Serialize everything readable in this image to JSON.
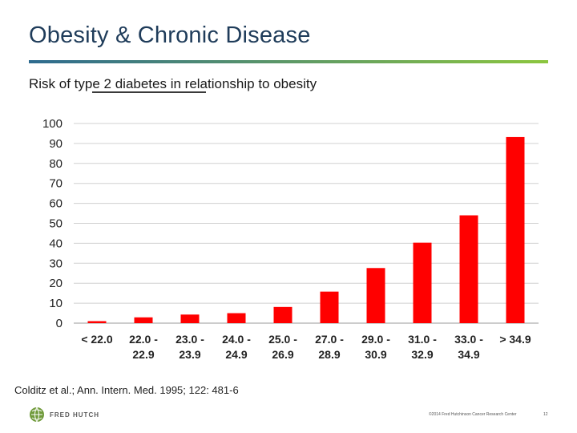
{
  "slide": {
    "title": "Obesity & Chronic Disease",
    "subtitle": "Risk of type 2 diabetes in relationship to obesity",
    "citation": "Colditz et al.; Ann. Intern. Med. 1995; 122: 481-6",
    "logo_text": "FRED HUTCH",
    "copyright": "©2014 Fred Hutchinson Cancer Research Center",
    "page_number": "12"
  },
  "colors": {
    "title": "#1f3c5a",
    "rule_start": "#2e6b8f",
    "rule_end": "#8cc63f",
    "bar": "#ff0000",
    "grid": "#d0d0d0"
  },
  "chart_data": {
    "type": "bar",
    "title": "Risk of type 2 diabetes in relationship to obesity",
    "xlabel": "",
    "ylabel": "",
    "ylim": [
      0,
      100
    ],
    "yticks": [
      0,
      10,
      20,
      30,
      40,
      50,
      60,
      70,
      80,
      90,
      100
    ],
    "grid": true,
    "legend": "none",
    "categories": [
      [
        "< 22.0"
      ],
      [
        "22.0 -",
        "22.9"
      ],
      [
        "23.0 -",
        "23.9"
      ],
      [
        "24.0 -",
        "24.9"
      ],
      [
        "25.0 -",
        "26.9"
      ],
      [
        "27.0 -",
        "28.9"
      ],
      [
        "29.0 -",
        "30.9"
      ],
      [
        "31.0 -",
        "32.9"
      ],
      [
        "33.0 -",
        "34.9"
      ],
      [
        "> 34.9"
      ]
    ],
    "values": [
      1.0,
      2.9,
      4.3,
      5.0,
      8.1,
      15.8,
      27.6,
      40.3,
      54.0,
      93.2
    ]
  }
}
